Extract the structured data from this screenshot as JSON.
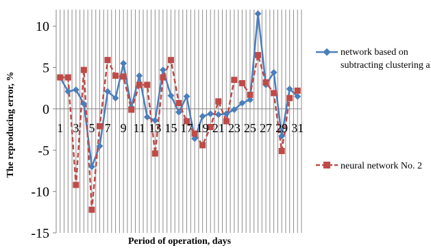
{
  "chart_data": {
    "type": "line",
    "title": "",
    "xlabel": "Period of operation, days",
    "ylabel": "The reproducing error, %",
    "x": [
      1,
      2,
      3,
      4,
      5,
      6,
      7,
      8,
      9,
      10,
      11,
      12,
      13,
      14,
      15,
      16,
      17,
      18,
      19,
      20,
      21,
      22,
      23,
      24,
      25,
      26,
      27,
      28,
      29,
      30,
      31
    ],
    "x_tick_labels": [
      "1",
      "3",
      "5",
      "7",
      "9",
      "11",
      "13",
      "15",
      "17",
      "19",
      "21",
      "23",
      "25",
      "27",
      "29",
      "31"
    ],
    "ylim": [
      -15,
      12
    ],
    "y_ticks": [
      -15,
      -10,
      -5,
      0,
      5,
      10
    ],
    "y_tick_labels": [
      "-15",
      "-10",
      "-5",
      "0",
      "5",
      "10"
    ],
    "grid": "vertical",
    "legend_position": "right",
    "series": [
      {
        "name": "network based on subtracting clustering algorithm",
        "color": "#4a7ebb",
        "marker": "diamond",
        "line_style": "solid",
        "values": [
          3.8,
          2.1,
          2.3,
          0.6,
          -7.0,
          -4.5,
          2.1,
          1.3,
          5.5,
          0.2,
          4.0,
          -1.0,
          -1.4,
          4.7,
          1.6,
          -0.4,
          1.5,
          -3.6,
          -0.9,
          -0.6,
          -0.7,
          -0.6,
          -0.1,
          0.7,
          1.1,
          11.5,
          2.9,
          4.4,
          -3.3,
          2.4,
          1.5
        ]
      },
      {
        "name": "neural network No. 2",
        "color": "#be4b48",
        "marker": "square",
        "line_style": "dashed",
        "values": [
          3.8,
          3.8,
          -9.2,
          4.7,
          -12.2,
          -2.1,
          5.9,
          4.0,
          3.9,
          -0.1,
          2.9,
          2.9,
          -5.4,
          3.8,
          5.9,
          0.7,
          -1.5,
          -3.0,
          -4.4,
          -2.2,
          0.9,
          -1.5,
          3.5,
          3.1,
          1.7,
          6.5,
          3.2,
          1.9,
          -5.1,
          1.3,
          2.2
        ]
      }
    ]
  }
}
